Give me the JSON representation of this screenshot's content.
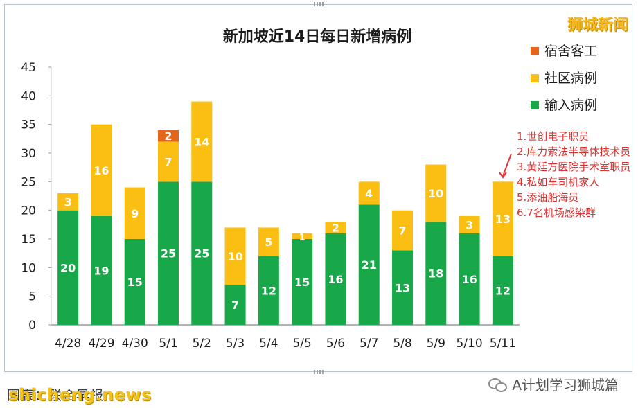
{
  "watermark_top": "狮城新闻",
  "footer": {
    "source_text": "图表：联合早报",
    "watermark": "shicheng.news",
    "account": "A计划学习狮城篇"
  },
  "annotation": {
    "lines": [
      "1.世创电子职员",
      "2.库力索法半导体技术员",
      "3.黄廷方医院手术室职员",
      "4.私如车司机家人",
      "5.添油船海员",
      "6.7名机场感染群"
    ]
  },
  "colors": {
    "imported": "#18a84a",
    "community": "#fbbf14",
    "dormitory": "#e3661c",
    "annotation": "#e2302f",
    "frame": "#b9c2c9",
    "arrow": "#e2302f"
  },
  "chart_data": {
    "type": "bar",
    "stacked": true,
    "title": "新加坡近14日每日新增病例",
    "xlabel": "",
    "ylabel": "",
    "ylim": [
      0,
      45
    ],
    "yticks": [
      0,
      5,
      10,
      15,
      20,
      25,
      30,
      35,
      40,
      45
    ],
    "grid": false,
    "legend_position": "top-right",
    "categories": [
      "4/28",
      "4/29",
      "4/30",
      "5/1",
      "5/2",
      "5/3",
      "5/4",
      "5/5",
      "5/6",
      "5/7",
      "5/8",
      "5/9",
      "5/10",
      "5/11"
    ],
    "series": [
      {
        "name": "输入病例",
        "color": "#18a84a",
        "values": [
          20,
          19,
          15,
          25,
          25,
          7,
          12,
          15,
          16,
          21,
          13,
          18,
          16,
          12
        ]
      },
      {
        "name": "社区病例",
        "color": "#fbbf14",
        "values": [
          3,
          16,
          9,
          7,
          14,
          10,
          5,
          1,
          2,
          4,
          7,
          10,
          3,
          13
        ]
      },
      {
        "name": "宿舍客工",
        "color": "#e3661c",
        "values": [
          0,
          0,
          0,
          2,
          0,
          0,
          0,
          0,
          0,
          0,
          0,
          0,
          0,
          0
        ]
      }
    ],
    "legend_order": [
      "宿舍客工",
      "社区病例",
      "输入病例"
    ]
  }
}
